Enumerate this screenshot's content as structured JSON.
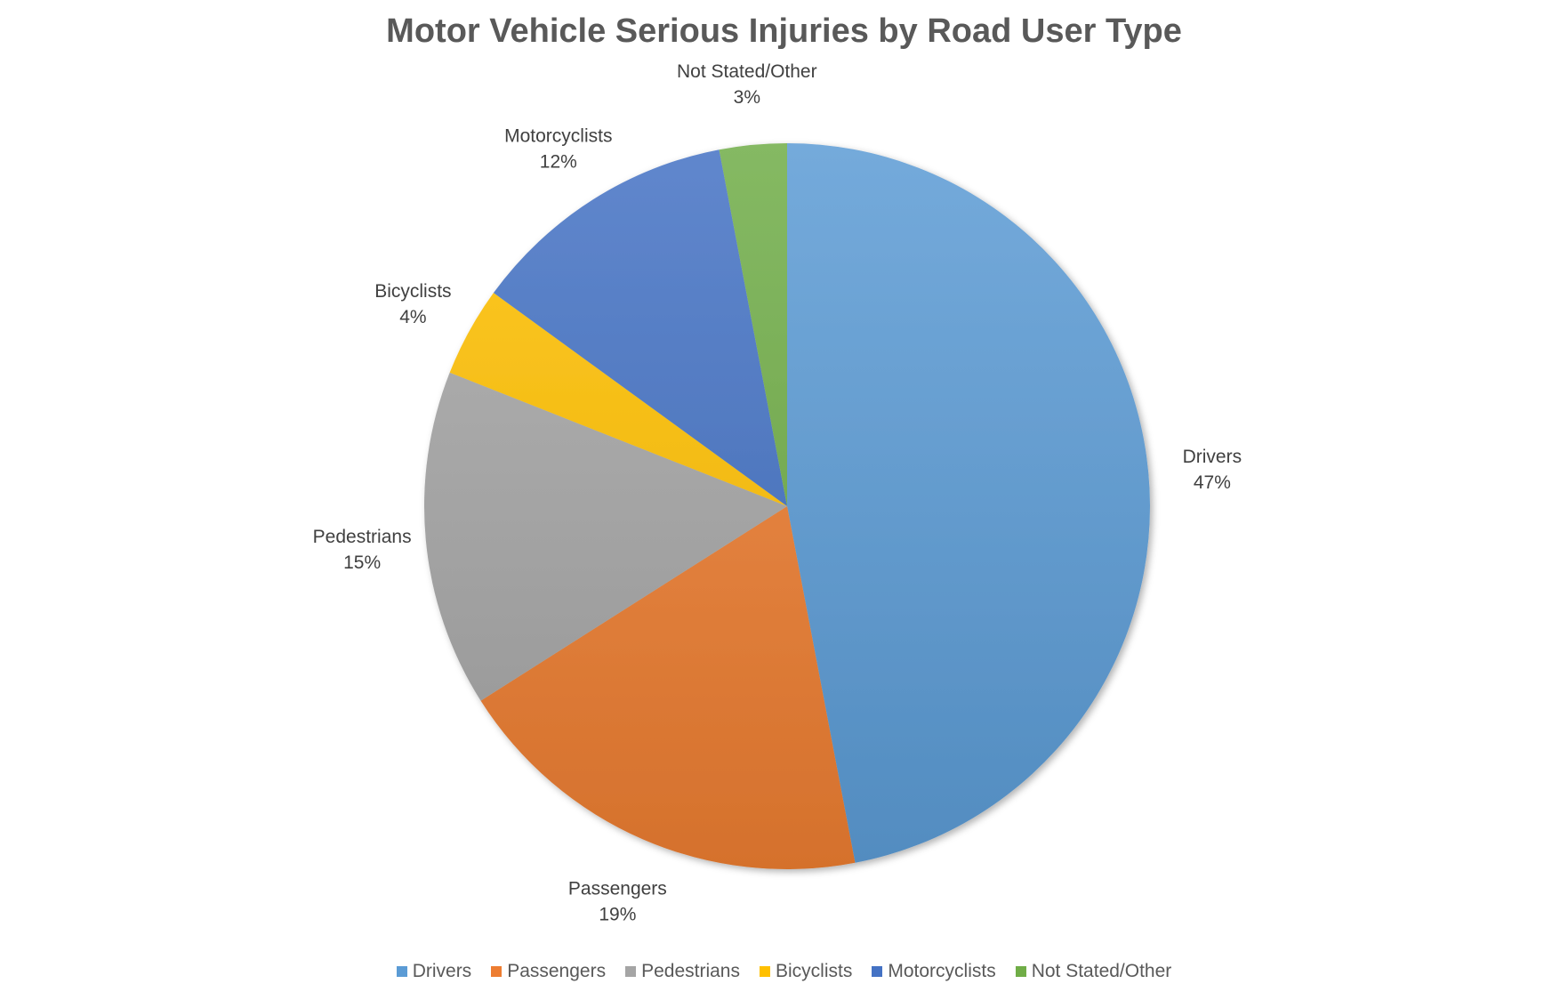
{
  "chart_data": {
    "type": "pie",
    "title": "Motor Vehicle Serious Injuries by Road User Type",
    "categories": [
      "Drivers",
      "Passengers",
      "Pedestrians",
      "Bicyclists",
      "Motorcyclists",
      "Not Stated/Other"
    ],
    "values": [
      47,
      19,
      15,
      4,
      12,
      3
    ],
    "value_labels": [
      "47%",
      "19%",
      "15%",
      "4%",
      "12%",
      "3%"
    ],
    "colors": [
      "#5B9BD5",
      "#ED7D31",
      "#A5A5A5",
      "#FFC000",
      "#4472C4",
      "#70AD47"
    ],
    "start_angle": "12 o'clock, clockwise",
    "legend_position": "bottom",
    "data_labels": "category name and percentage, outside end"
  }
}
